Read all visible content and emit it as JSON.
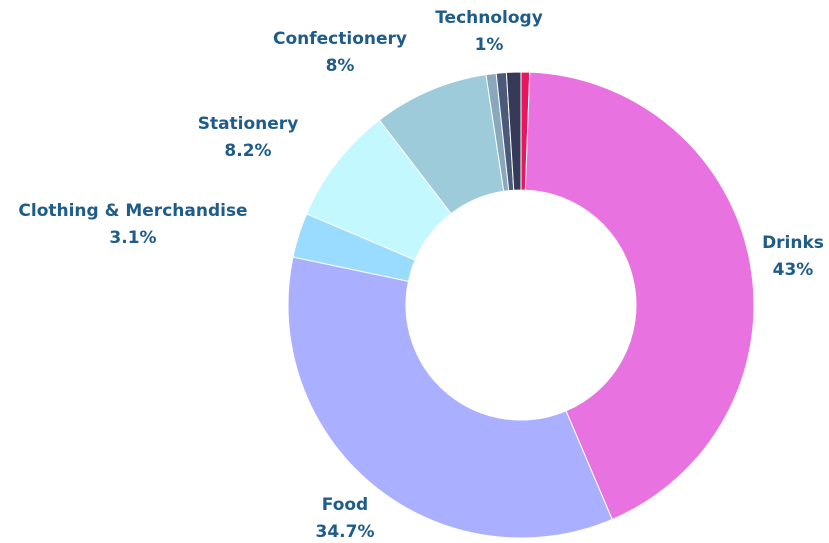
{
  "chart_data": {
    "type": "donut",
    "categories": [
      null,
      "Drinks",
      "Food",
      "Clothing & Merchandise",
      "Stationery",
      "Confectionery",
      null,
      null,
      "Technology"
    ],
    "values": [
      0.6,
      43,
      34.7,
      3.1,
      8.2,
      8,
      0.7,
      0.7,
      1
    ],
    "value_labels": [
      null,
      "43%",
      "34.7%",
      "3.1%",
      "8.2%",
      "8%",
      null,
      null,
      "1%"
    ],
    "colors": [
      "#e8175d",
      "#e873e0",
      "#aab0ff",
      "#99dcff",
      "#c4f8ff",
      "#9ecbd9",
      "#8aa7bc",
      "#4a5a78",
      "#363a58"
    ]
  }
}
